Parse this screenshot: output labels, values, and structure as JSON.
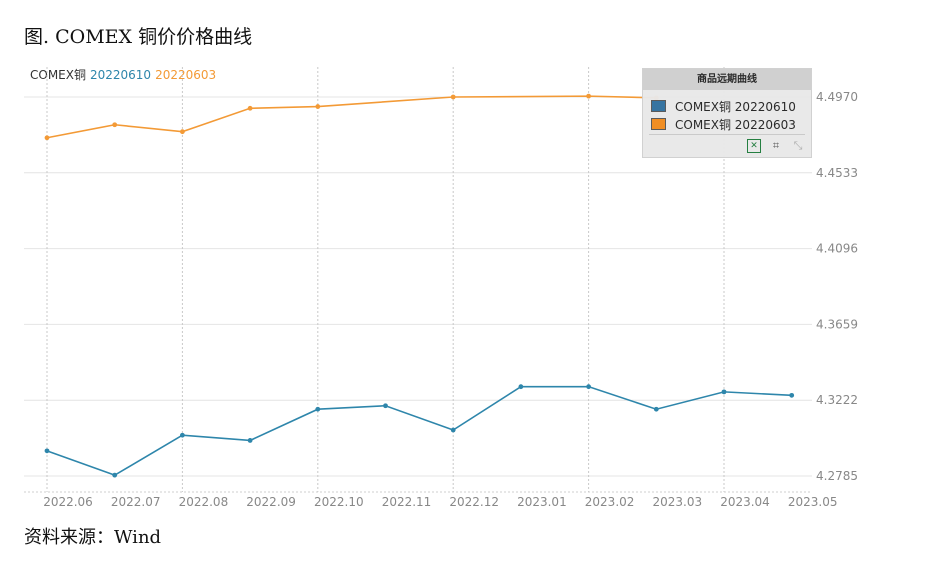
{
  "figure_title": "图. COMEX 铜价价格曲线",
  "source_note": "资料来源：Wind",
  "series_header": {
    "label": "COMEX铜",
    "series1": "20220610",
    "series2": "20220603"
  },
  "legend": {
    "title": "商品远期曲线",
    "items": [
      "COMEX铜 20220610",
      "COMEX铜 20220603"
    ],
    "tools": [
      "excel-export-icon",
      "crop-icon",
      "reset-icon"
    ]
  },
  "colors": {
    "series_20220610": "#2e86ab",
    "series_20220603": "#f39a36",
    "grid": "#e4e4e4",
    "axis_text": "#888888"
  },
  "chart_data": {
    "type": "line",
    "categories": [
      "2022.06",
      "2022.07",
      "2022.08",
      "2022.09",
      "2022.10",
      "2022.11",
      "2022.12",
      "2023.01",
      "2023.02",
      "2023.03",
      "2023.04",
      "2023.05"
    ],
    "y_ticks": [
      "4.2785",
      "4.3222",
      "4.3659",
      "4.4096",
      "4.4533",
      "4.4970"
    ],
    "ylim": [
      4.2785,
      4.497
    ],
    "y_axis_position": "right",
    "grid": true,
    "legend_position": "top-right",
    "series": [
      {
        "name": "COMEX铜 20220610",
        "values": [
          4.293,
          4.279,
          4.302,
          4.299,
          4.317,
          4.319,
          4.305,
          4.33,
          4.33,
          4.317,
          4.327,
          4.325
        ]
      },
      {
        "name": "COMEX铜 20220603",
        "values": [
          4.4735,
          4.481,
          4.477,
          4.4905,
          4.4915,
          null,
          4.497,
          null,
          4.4975,
          4.4965,
          null,
          null
        ]
      }
    ]
  }
}
